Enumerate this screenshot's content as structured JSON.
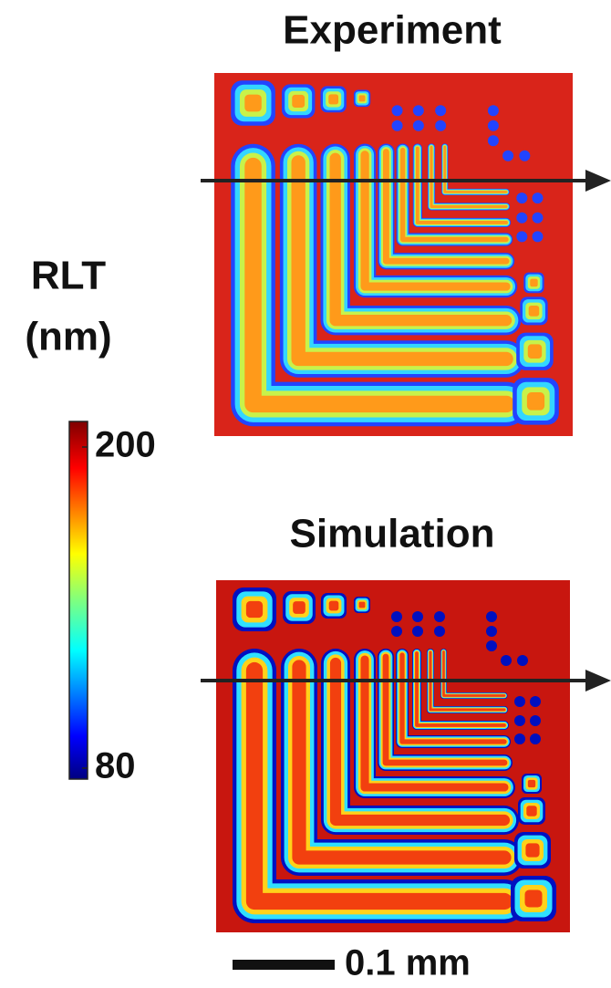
{
  "panels": [
    {
      "title": "Experiment"
    },
    {
      "title": "Simulation"
    }
  ],
  "colorbar": {
    "label_lines": [
      "RLT",
      "(nm)"
    ],
    "range": [
      80,
      200
    ],
    "ticks": [
      80,
      200
    ]
  },
  "scale_bar": {
    "label": "0.1 mm"
  }
}
